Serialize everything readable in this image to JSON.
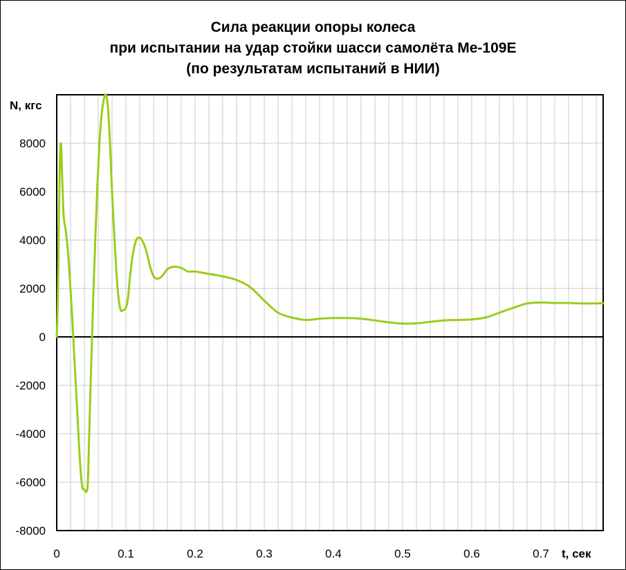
{
  "chart_data": {
    "type": "line",
    "title": [
      "Сила реакции опоры колеса",
      "при испытании на удар стойки шасси самолёта Ме-109Е",
      "(по результатам испытаний в НИИ)"
    ],
    "xlabel": "t, сек",
    "ylabel": "N, кгс",
    "xlim": [
      0,
      0.79
    ],
    "ylim": [
      -8000,
      10000
    ],
    "x_ticks": [
      "0",
      "0.1",
      "0.2",
      "0.3",
      "0.4",
      "0.5",
      "0.6",
      "0.7"
    ],
    "x_tick_values": [
      0,
      0.1,
      0.2,
      0.3,
      0.4,
      0.5,
      0.6,
      0.7
    ],
    "y_ticks": [
      "8000",
      "6000",
      "4000",
      "2000",
      "0",
      "-2000",
      "-4000",
      "-6000",
      "-8000"
    ],
    "y_tick_values": [
      8000,
      6000,
      4000,
      2000,
      0,
      -2000,
      -4000,
      -6000,
      -8000
    ],
    "grid": true,
    "line_color": "#9acd1a",
    "series": [
      {
        "x": [
          0,
          0.001,
          0.002,
          0.004,
          0.006,
          0.008,
          0.01,
          0.013,
          0.016,
          0.019,
          0.022,
          0.025,
          0.028,
          0.031,
          0.034,
          0.037,
          0.04,
          0.043,
          0.045,
          0.047,
          0.05,
          0.053,
          0.056,
          0.059,
          0.062,
          0.065,
          0.068,
          0.071,
          0.074,
          0.077,
          0.08,
          0.084,
          0.088,
          0.092,
          0.096,
          0.1,
          0.103,
          0.106,
          0.11,
          0.115,
          0.12,
          0.125,
          0.13,
          0.135,
          0.14,
          0.145,
          0.15,
          0.155,
          0.16,
          0.17,
          0.18,
          0.19,
          0.2,
          0.22,
          0.24,
          0.26,
          0.28,
          0.3,
          0.32,
          0.34,
          0.36,
          0.38,
          0.4,
          0.42,
          0.44,
          0.46,
          0.48,
          0.5,
          0.52,
          0.54,
          0.56,
          0.58,
          0.6,
          0.62,
          0.64,
          0.66,
          0.68,
          0.7,
          0.72,
          0.74,
          0.76,
          0.79
        ],
        "y": [
          0,
          800,
          2300,
          6500,
          8000,
          6500,
          5000,
          4400,
          3600,
          2400,
          1000,
          -600,
          -2200,
          -3800,
          -5300,
          -6200,
          -6300,
          -6400,
          -6000,
          -4000,
          -1000,
          1800,
          4200,
          6400,
          8100,
          9200,
          9800,
          10000,
          9500,
          8000,
          6000,
          3800,
          2000,
          1150,
          1100,
          1200,
          1600,
          2500,
          3400,
          4000,
          4100,
          3900,
          3500,
          2900,
          2500,
          2400,
          2450,
          2600,
          2800,
          2900,
          2850,
          2700,
          2700,
          2600,
          2500,
          2350,
          2050,
          1500,
          1000,
          800,
          700,
          750,
          780,
          780,
          750,
          680,
          600,
          550,
          560,
          620,
          680,
          700,
          720,
          800,
          1000,
          1200,
          1380,
          1420,
          1400,
          1400,
          1380,
          1390
        ]
      }
    ]
  }
}
